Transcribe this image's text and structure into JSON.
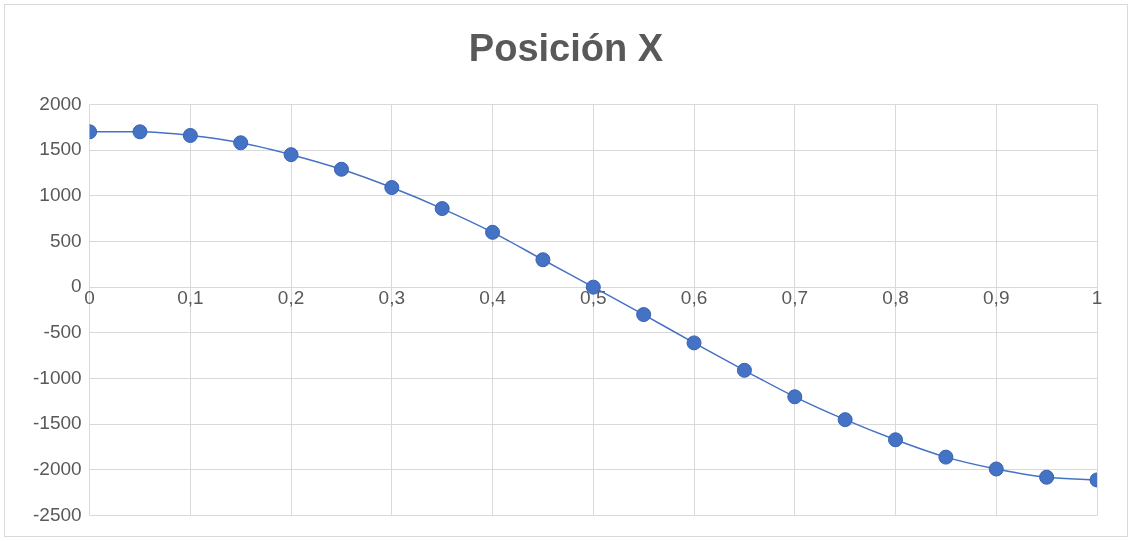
{
  "chart_data": {
    "type": "line",
    "title": "Posición X",
    "x": [
      0,
      0.05,
      0.1,
      0.15,
      0.2,
      0.25,
      0.3,
      0.35,
      0.4,
      0.45,
      0.5,
      0.55,
      0.6,
      0.65,
      0.7,
      0.75,
      0.8,
      0.85,
      0.9,
      0.95,
      1
    ],
    "series": [
      {
        "color": "#4472c4",
        "values": [
          1700,
          1700,
          1660,
          1580,
          1450,
          1290,
          1090,
          860,
          600,
          300,
          0,
          -300,
          -610,
          -910,
          -1200,
          -1450,
          -1670,
          -1860,
          -1990,
          -2080,
          -2110
        ]
      }
    ],
    "xlim": [
      0,
      1
    ],
    "xticks": [
      0,
      {
        "value": 0.1,
        "label": "0,1"
      },
      {
        "value": 0.2,
        "label": "0,2"
      },
      {
        "value": 0.3,
        "label": "0,3"
      },
      {
        "value": 0.4,
        "label": "0,4"
      },
      {
        "value": 0.5,
        "label": "0,5"
      },
      {
        "value": 0.6,
        "label": "0,6"
      },
      {
        "value": 0.7,
        "label": "0,7"
      },
      {
        "value": 0.8,
        "label": "0,8"
      },
      {
        "value": 0.9,
        "label": "0,9"
      },
      1
    ],
    "ylim": [
      -2500,
      2000
    ],
    "yticks": [
      -2500,
      -2000,
      -1500,
      -1000,
      -500,
      0,
      500,
      1000,
      1500,
      2000
    ],
    "grid": true,
    "marker": "circle",
    "line_style": "solid"
  }
}
